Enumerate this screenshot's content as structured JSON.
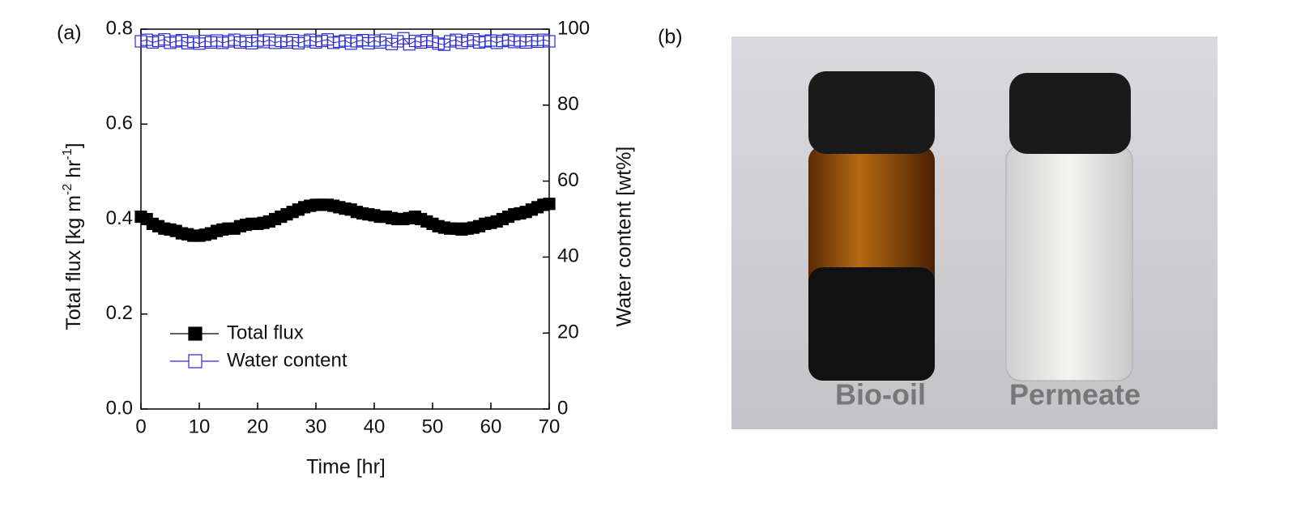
{
  "chart_data": {
    "type": "line",
    "panel_label": "(a)",
    "xlabel": "Time [hr]",
    "ylabel": [
      "Total flux [kg m",
      "-2",
      " hr",
      "-1",
      "]"
    ],
    "y2label": "Water content [wt%]",
    "x": [
      0,
      1,
      2,
      3,
      4,
      5,
      6,
      7,
      8,
      9,
      10,
      11,
      12,
      13,
      14,
      15,
      16,
      17,
      18,
      19,
      20,
      21,
      22,
      23,
      24,
      25,
      26,
      27,
      28,
      29,
      30,
      31,
      32,
      33,
      34,
      35,
      36,
      37,
      38,
      39,
      40,
      41,
      42,
      43,
      44,
      45,
      46,
      47,
      48,
      49,
      50,
      51,
      52,
      53,
      54,
      55,
      56,
      57,
      58,
      59,
      60,
      61,
      62,
      63,
      64,
      65,
      66,
      67,
      68,
      69,
      70
    ],
    "series": [
      {
        "name": "Total flux",
        "color": "#000000",
        "marker": "filled-square",
        "values": [
          0.405,
          0.4,
          0.39,
          0.385,
          0.38,
          0.378,
          0.375,
          0.37,
          0.368,
          0.365,
          0.365,
          0.367,
          0.37,
          0.375,
          0.378,
          0.38,
          0.38,
          0.385,
          0.388,
          0.39,
          0.39,
          0.392,
          0.395,
          0.4,
          0.405,
          0.41,
          0.415,
          0.42,
          0.425,
          0.428,
          0.43,
          0.43,
          0.43,
          0.428,
          0.425,
          0.422,
          0.42,
          0.415,
          0.412,
          0.41,
          0.408,
          0.405,
          0.405,
          0.402,
          0.4,
          0.4,
          0.402,
          0.405,
          0.4,
          0.395,
          0.39,
          0.385,
          0.382,
          0.38,
          0.38,
          0.378,
          0.38,
          0.382,
          0.385,
          0.39,
          0.392,
          0.395,
          0.4,
          0.405,
          0.41,
          0.412,
          0.415,
          0.42,
          0.425,
          0.43,
          0.432
        ]
      },
      {
        "name": "Water content",
        "color": "#2b2bd6",
        "marker": "open-square",
        "axis": "y2",
        "values": [
          96.8,
          97.2,
          96.5,
          96.9,
          97.3,
          96.4,
          96.8,
          97.1,
          96.3,
          96.7,
          96.2,
          96.9,
          96.5,
          97.0,
          96.4,
          96.8,
          97.2,
          96.5,
          96.9,
          96.3,
          97.0,
          96.6,
          97.2,
          96.4,
          96.9,
          96.5,
          97.1,
          96.3,
          96.8,
          97.2,
          96.5,
          96.9,
          97.3,
          96.4,
          96.7,
          97.0,
          96.2,
          96.8,
          97.1,
          96.3,
          97.0,
          96.5,
          97.2,
          96.1,
          96.8,
          97.6,
          96.0,
          96.9,
          96.5,
          97.1,
          96.7,
          96.2,
          95.9,
          96.8,
          97.2,
          96.4,
          96.9,
          97.3,
          96.5,
          96.8,
          97.0,
          96.4,
          96.9,
          97.2,
          96.6,
          97.0,
          96.5,
          97.1,
          96.7,
          97.2,
          96.8
        ]
      }
    ],
    "xlim": [
      0,
      70
    ],
    "xticks": [
      0,
      10,
      20,
      30,
      40,
      50,
      60,
      70
    ],
    "ylim": [
      0,
      0.8
    ],
    "yticks": [
      {
        "value": 0,
        "label": "0.0"
      },
      0.2,
      0.4,
      0.6,
      0.8
    ],
    "y2lim": [
      0,
      100
    ],
    "y2ticks": [
      0,
      20,
      40,
      60,
      80,
      100
    ],
    "legend": "lower left"
  },
  "photo": {
    "panel_label": "(b)",
    "labels": [
      "Bio-oil",
      "Permeate"
    ]
  }
}
